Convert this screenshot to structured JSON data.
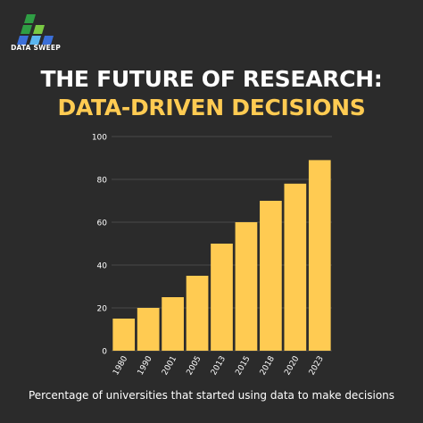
{
  "brand": {
    "name": "DATA SWEEP",
    "colors": [
      "#2f9e44",
      "#3b6fd8",
      "#5ab5f0",
      "#7ac943"
    ]
  },
  "title_line1": "THE FUTURE OF RESEARCH:",
  "title_line2": "DATA-DRIVEN DECISIONS",
  "caption": "Percentage of universities that started using data to make decisions",
  "colors": {
    "background": "#2b2b2b",
    "bar": "#ffcb52",
    "accent": "#ffcb52",
    "text": "#ffffff"
  },
  "chart_data": {
    "type": "bar",
    "categories": [
      "1980",
      "1990",
      "2001",
      "2005",
      "2013",
      "2015",
      "2018",
      "2020",
      "2023"
    ],
    "values": [
      15,
      20,
      25,
      35,
      50,
      60,
      70,
      78,
      89
    ],
    "ylim": [
      0,
      100
    ],
    "yticks": [
      0,
      20,
      40,
      60,
      80,
      100
    ],
    "grid": true,
    "legend": "none"
  }
}
